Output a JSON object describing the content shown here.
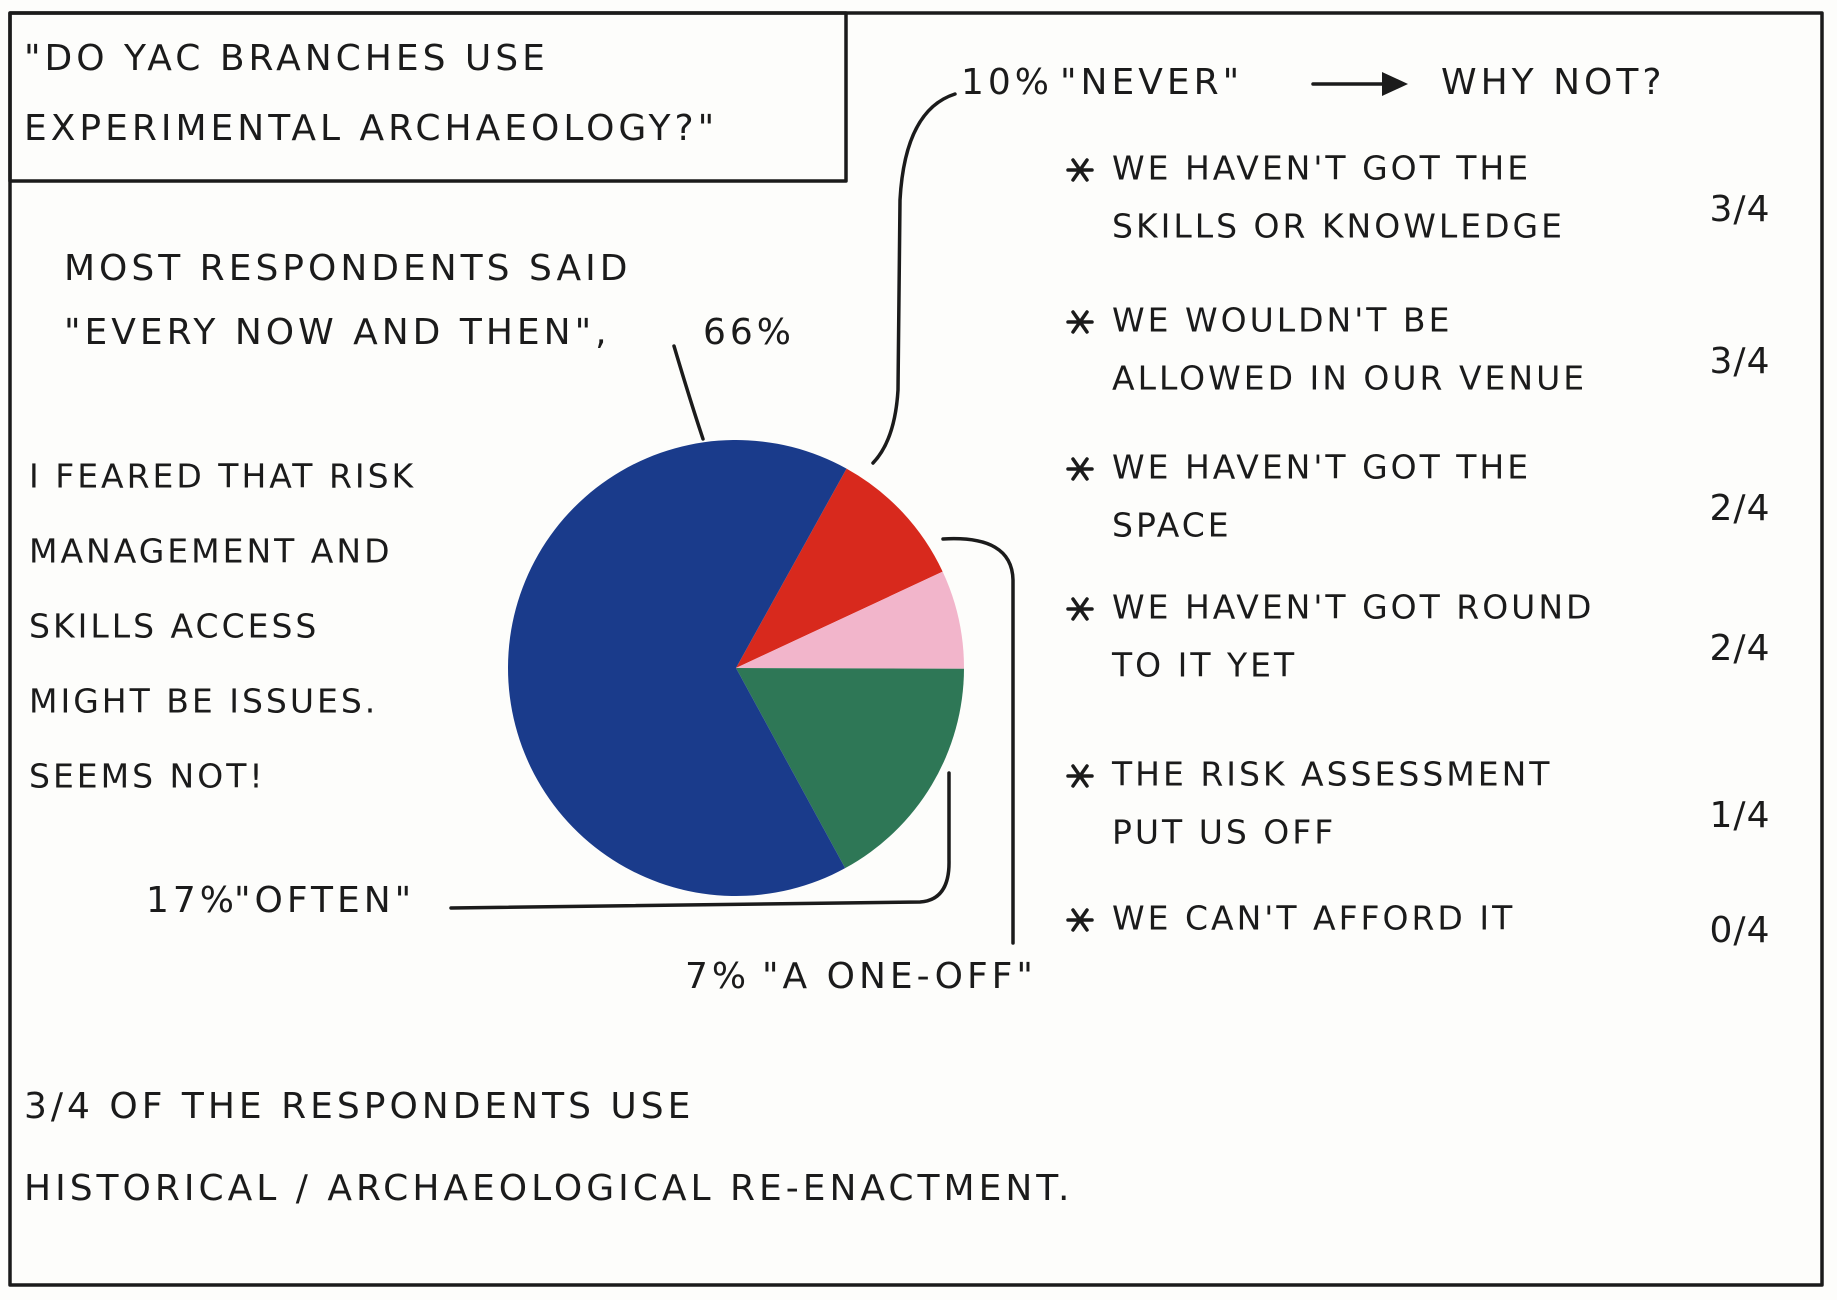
{
  "chart_data": {
    "type": "pie",
    "title": [
      "\"DO YAC BRANCHES USE",
      "EXPERIMENTAL ARCHAEOLOGY?\""
    ],
    "annotation": "MOST RESPONDENTS SAID",
    "categories": [
      "\"NEVER\"",
      "\"A ONE-OFF\"",
      "\"OFTEN\"",
      "\"EVERY NOW AND THEN\","
    ],
    "values": [
      10,
      7,
      17,
      66
    ],
    "value_labels": [
      "10%",
      "7%",
      "17%",
      "66%"
    ],
    "colors": [
      "#d8291d",
      "#f2b5cb",
      "#2e7756",
      "#1a3b8b"
    ]
  },
  "why_not": {
    "heading": "WHY NOT?",
    "items": [
      {
        "lines": [
          "WE HAVEN'T GOT THE",
          "SKILLS OR KNOWLEDGE"
        ],
        "fraction": "3/4"
      },
      {
        "lines": [
          "WE WOULDN'T BE",
          "ALLOWED IN OUR VENUE"
        ],
        "fraction": "3/4"
      },
      {
        "lines": [
          "WE HAVEN'T GOT THE",
          "SPACE"
        ],
        "fraction": "2/4"
      },
      {
        "lines": [
          "WE HAVEN'T GOT ROUND",
          "TO IT YET"
        ],
        "fraction": "2/4"
      },
      {
        "lines": [
          "THE RISK ASSESSMENT",
          "PUT US OFF"
        ],
        "fraction": "1/4"
      },
      {
        "lines": [
          "WE CAN'T AFFORD IT"
        ],
        "fraction": "0/4"
      }
    ]
  },
  "side_note": [
    "I FEARED THAT RISK",
    "MANAGEMENT AND",
    "SKILLS ACCESS",
    "MIGHT BE ISSUES.",
    "SEEMS NOT!"
  ],
  "footer": [
    "3/4 OF THE RESPONDENTS USE",
    "HISTORICAL / ARCHAEOLOGICAL RE-ENACTMENT."
  ]
}
